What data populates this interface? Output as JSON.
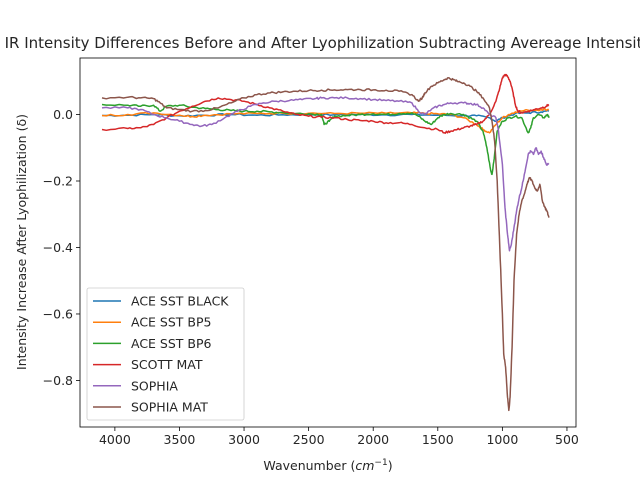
{
  "chart_data": {
    "type": "line",
    "title": "IR Intensity Differences Before and After Lyophilization Subtracting Avereage Intensity",
    "xlabel": "Wavenumber",
    "xlabel_unit": "cm",
    "xlabel_unit_exp": "−1",
    "ylabel": "Intensity Increase After Lyophilization (δ)",
    "xlim": [
      4270,
      430
    ],
    "ylim": [
      -0.94,
      0.17
    ],
    "x_ticks": [
      4000,
      3500,
      3000,
      2500,
      2000,
      1500,
      1000,
      500
    ],
    "x_tick_labels": [
      "4000",
      "3500",
      "3000",
      "2500",
      "2000",
      "1500",
      "1000",
      "500"
    ],
    "y_ticks": [
      0.0,
      -0.2,
      -0.4,
      -0.6,
      -0.8
    ],
    "y_tick_labels": [
      "0.0",
      "−0.2",
      "−0.4",
      "−0.6",
      "−0.8"
    ],
    "legend_position": "lower-left",
    "grid": false,
    "series": [
      {
        "name": "ACE SST BLACK",
        "color": "#1f77b4",
        "points": [
          [
            4100,
            -0.003
          ],
          [
            3900,
            -0.002
          ],
          [
            3700,
            0.0
          ],
          [
            3500,
            -0.004
          ],
          [
            3300,
            -0.002
          ],
          [
            3100,
            0.0
          ],
          [
            2900,
            -0.002
          ],
          [
            2700,
            -0.001
          ],
          [
            2500,
            0.0
          ],
          [
            2300,
            -0.001
          ],
          [
            2100,
            0.0
          ],
          [
            1900,
            -0.001
          ],
          [
            1700,
            0.0
          ],
          [
            1500,
            -0.002
          ],
          [
            1300,
            -0.003
          ],
          [
            1200,
            -0.004
          ],
          [
            1100,
            -0.01
          ],
          [
            1050,
            -0.02
          ],
          [
            1000,
            -0.01
          ],
          [
            900,
            0.003
          ],
          [
            800,
            0.005
          ],
          [
            700,
            0.008
          ],
          [
            640,
            0.01
          ]
        ]
      },
      {
        "name": "ACE SST BP5",
        "color": "#ff7f0e",
        "points": [
          [
            4100,
            -0.003
          ],
          [
            3900,
            0.0
          ],
          [
            3700,
            0.005
          ],
          [
            3500,
            -0.002
          ],
          [
            3400,
            -0.006
          ],
          [
            3300,
            -0.002
          ],
          [
            3100,
            0.002
          ],
          [
            2900,
            0.003
          ],
          [
            2700,
            0.004
          ],
          [
            2500,
            0.004
          ],
          [
            2300,
            0.003
          ],
          [
            2100,
            0.004
          ],
          [
            1900,
            0.004
          ],
          [
            1700,
            0.005
          ],
          [
            1600,
            0.003
          ],
          [
            1500,
            0.002
          ],
          [
            1400,
            0.0
          ],
          [
            1300,
            -0.01
          ],
          [
            1200,
            -0.03
          ],
          [
            1150,
            -0.045
          ],
          [
            1100,
            -0.055
          ],
          [
            1050,
            -0.03
          ],
          [
            1000,
            -0.01
          ],
          [
            950,
            0.0
          ],
          [
            900,
            0.008
          ],
          [
            800,
            0.013
          ],
          [
            700,
            0.015
          ],
          [
            640,
            0.015
          ]
        ]
      },
      {
        "name": "ACE SST BP6",
        "color": "#2ca02c",
        "points": [
          [
            4100,
            0.03
          ],
          [
            3900,
            0.028
          ],
          [
            3800,
            0.025
          ],
          [
            3700,
            0.028
          ],
          [
            3650,
            0.01
          ],
          [
            3600,
            0.025
          ],
          [
            3500,
            0.028
          ],
          [
            3400,
            0.022
          ],
          [
            3300,
            0.018
          ],
          [
            3200,
            0.015
          ],
          [
            3100,
            0.012
          ],
          [
            3000,
            0.01
          ],
          [
            2900,
            0.01
          ],
          [
            2800,
            0.008
          ],
          [
            2700,
            0.006
          ],
          [
            2600,
            0.003
          ],
          [
            2500,
            0.002
          ],
          [
            2400,
            0.0
          ],
          [
            2380,
            -0.03
          ],
          [
            2340,
            -0.02
          ],
          [
            2300,
            -0.005
          ],
          [
            2200,
            -0.003
          ],
          [
            2100,
            0.0
          ],
          [
            2000,
            0.002
          ],
          [
            1900,
            0.0
          ],
          [
            1800,
            0.003
          ],
          [
            1700,
            0.005
          ],
          [
            1650,
            -0.005
          ],
          [
            1600,
            -0.02
          ],
          [
            1550,
            -0.03
          ],
          [
            1500,
            -0.01
          ],
          [
            1450,
            0.0
          ],
          [
            1400,
            0.003
          ],
          [
            1300,
            0.0
          ],
          [
            1250,
            -0.01
          ],
          [
            1200,
            -0.02
          ],
          [
            1150,
            -0.05
          ],
          [
            1120,
            -0.1
          ],
          [
            1090,
            -0.17
          ],
          [
            1080,
            -0.18
          ],
          [
            1060,
            -0.12
          ],
          [
            1040,
            -0.05
          ],
          [
            1000,
            -0.02
          ],
          [
            950,
            -0.01
          ],
          [
            900,
            -0.005
          ],
          [
            850,
            -0.01
          ],
          [
            800,
            -0.055
          ],
          [
            780,
            -0.04
          ],
          [
            760,
            -0.01
          ],
          [
            720,
            0.0
          ],
          [
            680,
            -0.01
          ],
          [
            650,
            0.0
          ],
          [
            640,
            -0.01
          ]
        ]
      },
      {
        "name": "SCOTT MAT",
        "color": "#d62728",
        "points": [
          [
            4100,
            -0.045
          ],
          [
            3900,
            -0.042
          ],
          [
            3800,
            -0.04
          ],
          [
            3700,
            -0.03
          ],
          [
            3600,
            -0.01
          ],
          [
            3500,
            0.01
          ],
          [
            3400,
            0.025
          ],
          [
            3300,
            0.04
          ],
          [
            3200,
            0.05
          ],
          [
            3100,
            0.045
          ],
          [
            3000,
            0.04
          ],
          [
            2900,
            0.03
          ],
          [
            2800,
            0.02
          ],
          [
            2700,
            0.01
          ],
          [
            2600,
            0.0
          ],
          [
            2500,
            -0.005
          ],
          [
            2400,
            -0.008
          ],
          [
            2300,
            -0.01
          ],
          [
            2200,
            -0.015
          ],
          [
            2100,
            -0.018
          ],
          [
            2000,
            -0.02
          ],
          [
            1900,
            -0.025
          ],
          [
            1800,
            -0.025
          ],
          [
            1700,
            -0.03
          ],
          [
            1600,
            -0.04
          ],
          [
            1500,
            -0.045
          ],
          [
            1450,
            -0.055
          ],
          [
            1400,
            -0.05
          ],
          [
            1350,
            -0.045
          ],
          [
            1300,
            -0.04
          ],
          [
            1250,
            -0.035
          ],
          [
            1200,
            -0.03
          ],
          [
            1150,
            -0.02
          ],
          [
            1100,
            0.0
          ],
          [
            1050,
            0.04
          ],
          [
            1020,
            0.08
          ],
          [
            1000,
            0.11
          ],
          [
            980,
            0.12
          ],
          [
            960,
            0.115
          ],
          [
            940,
            0.1
          ],
          [
            920,
            0.07
          ],
          [
            900,
            0.03
          ],
          [
            880,
            0.01
          ],
          [
            850,
            0.005
          ],
          [
            800,
            0.01
          ],
          [
            750,
            0.015
          ],
          [
            700,
            0.02
          ],
          [
            660,
            0.025
          ],
          [
            640,
            0.03
          ]
        ]
      },
      {
        "name": "SOPHIA",
        "color": "#9467bd",
        "points": [
          [
            4100,
            0.02
          ],
          [
            3900,
            0.02
          ],
          [
            3800,
            0.015
          ],
          [
            3700,
            0.0
          ],
          [
            3600,
            -0.01
          ],
          [
            3500,
            -0.02
          ],
          [
            3400,
            -0.03
          ],
          [
            3330,
            -0.035
          ],
          [
            3250,
            -0.03
          ],
          [
            3150,
            -0.01
          ],
          [
            3050,
            0.01
          ],
          [
            2950,
            0.025
          ],
          [
            2850,
            0.035
          ],
          [
            2750,
            0.04
          ],
          [
            2650,
            0.042
          ],
          [
            2550,
            0.045
          ],
          [
            2450,
            0.048
          ],
          [
            2400,
            0.05
          ],
          [
            2300,
            0.05
          ],
          [
            2200,
            0.05
          ],
          [
            2100,
            0.048
          ],
          [
            2000,
            0.045
          ],
          [
            1900,
            0.042
          ],
          [
            1800,
            0.04
          ],
          [
            1700,
            0.035
          ],
          [
            1650,
            0.01
          ],
          [
            1600,
            0.0
          ],
          [
            1550,
            0.015
          ],
          [
            1500,
            0.025
          ],
          [
            1450,
            0.03
          ],
          [
            1400,
            0.035
          ],
          [
            1300,
            0.035
          ],
          [
            1250,
            0.033
          ],
          [
            1200,
            0.03
          ],
          [
            1150,
            0.02
          ],
          [
            1100,
            0.0
          ],
          [
            1050,
            -0.01
          ],
          [
            1030,
            -0.05
          ],
          [
            1000,
            -0.15
          ],
          [
            980,
            -0.28
          ],
          [
            960,
            -0.36
          ],
          [
            945,
            -0.41
          ],
          [
            930,
            -0.39
          ],
          [
            910,
            -0.34
          ],
          [
            890,
            -0.29
          ],
          [
            870,
            -0.25
          ],
          [
            850,
            -0.22
          ],
          [
            830,
            -0.18
          ],
          [
            800,
            -0.12
          ],
          [
            780,
            -0.11
          ],
          [
            760,
            -0.12
          ],
          [
            740,
            -0.1
          ],
          [
            720,
            -0.12
          ],
          [
            700,
            -0.11
          ],
          [
            680,
            -0.13
          ],
          [
            660,
            -0.15
          ],
          [
            640,
            -0.15
          ]
        ]
      },
      {
        "name": "SOPHIA MAT",
        "color": "#8c564b",
        "points": [
          [
            4100,
            0.05
          ],
          [
            3900,
            0.052
          ],
          [
            3800,
            0.05
          ],
          [
            3700,
            0.048
          ],
          [
            3650,
            0.035
          ],
          [
            3600,
            0.02
          ],
          [
            3500,
            0.015
          ],
          [
            3400,
            0.01
          ],
          [
            3300,
            0.012
          ],
          [
            3200,
            0.02
          ],
          [
            3100,
            0.035
          ],
          [
            3000,
            0.05
          ],
          [
            2900,
            0.06
          ],
          [
            2800,
            0.065
          ],
          [
            2700,
            0.068
          ],
          [
            2600,
            0.07
          ],
          [
            2500,
            0.072
          ],
          [
            2400,
            0.073
          ],
          [
            2300,
            0.074
          ],
          [
            2200,
            0.075
          ],
          [
            2100,
            0.075
          ],
          [
            2000,
            0.074
          ],
          [
            1900,
            0.073
          ],
          [
            1800,
            0.07
          ],
          [
            1700,
            0.06
          ],
          [
            1650,
            0.04
          ],
          [
            1620,
            0.05
          ],
          [
            1600,
            0.065
          ],
          [
            1550,
            0.085
          ],
          [
            1500,
            0.095
          ],
          [
            1450,
            0.105
          ],
          [
            1420,
            0.11
          ],
          [
            1380,
            0.105
          ],
          [
            1350,
            0.1
          ],
          [
            1300,
            0.095
          ],
          [
            1250,
            0.085
          ],
          [
            1200,
            0.07
          ],
          [
            1150,
            0.05
          ],
          [
            1100,
            0.02
          ],
          [
            1080,
            -0.02
          ],
          [
            1060,
            -0.08
          ],
          [
            1040,
            -0.2
          ],
          [
            1020,
            -0.4
          ],
          [
            1000,
            -0.6
          ],
          [
            990,
            -0.72
          ],
          [
            975,
            -0.76
          ],
          [
            960,
            -0.85
          ],
          [
            950,
            -0.89
          ],
          [
            940,
            -0.85
          ],
          [
            925,
            -0.7
          ],
          [
            910,
            -0.5
          ],
          [
            890,
            -0.36
          ],
          [
            870,
            -0.3
          ],
          [
            850,
            -0.26
          ],
          [
            830,
            -0.24
          ],
          [
            810,
            -0.21
          ],
          [
            790,
            -0.19
          ],
          [
            770,
            -0.2
          ],
          [
            750,
            -0.22
          ],
          [
            730,
            -0.23
          ],
          [
            710,
            -0.21
          ],
          [
            690,
            -0.26
          ],
          [
            670,
            -0.28
          ],
          [
            655,
            -0.29
          ],
          [
            640,
            -0.31
          ]
        ]
      }
    ]
  }
}
